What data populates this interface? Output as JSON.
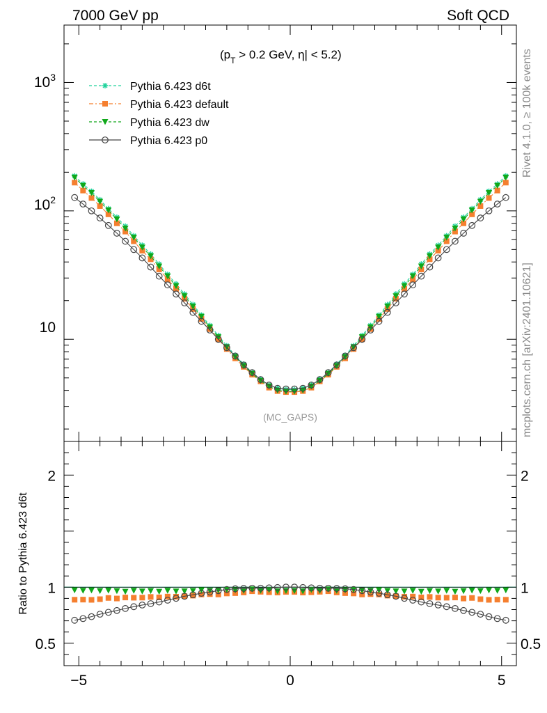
{
  "header": {
    "left": "7000 GeV pp",
    "right": "Soft QCD"
  },
  "side_labels": {
    "rivet": "Rivet 4.1.0, ≥ 100k events",
    "mcplots": "mcplots.cern.ch [arXiv:2401.10621]"
  },
  "chart_data": [
    {
      "type": "line",
      "panel": "main",
      "title": "(p_T > 0.2 GeV, |η| < 5.2)",
      "title_parts": {
        "p": "(p",
        "sub": "T",
        "rest": " > 0.2 GeV, η| < 5.2)"
      },
      "watermark": "(MC_GAPS)",
      "yscale": "log",
      "ylim": [
        1.6,
        2800
      ],
      "xlim": [
        -5.35,
        5.35
      ],
      "y_ticks": [
        {
          "value": 10,
          "label": "10"
        }
      ],
      "y_ticks_pow": [
        {
          "value": 100,
          "base": "10",
          "exp": "2"
        },
        {
          "value": 1000,
          "base": "10",
          "exp": "3"
        }
      ],
      "legend_position": "top-left",
      "x": [
        -5.1,
        -4.9,
        -4.7,
        -4.5,
        -4.3,
        -4.1,
        -3.9,
        -3.7,
        -3.5,
        -3.3,
        -3.1,
        -2.9,
        -2.7,
        -2.5,
        -2.3,
        -2.1,
        -1.9,
        -1.7,
        -1.5,
        -1.3,
        -1.1,
        -0.9,
        -0.7,
        -0.5,
        -0.3,
        -0.1,
        0.1,
        0.3,
        0.5,
        0.7,
        0.9,
        1.1,
        1.3,
        1.5,
        1.7,
        1.9,
        2.1,
        2.3,
        2.5,
        2.7,
        2.9,
        3.1,
        3.3,
        3.5,
        3.7,
        3.9,
        4.1,
        4.3,
        4.5,
        4.7,
        4.9,
        5.1
      ],
      "series": [
        {
          "name": "Pythia 6.423 d6t",
          "color": "#1ed29b",
          "marker": "star",
          "line": "dashed",
          "values": [
            187,
            162,
            142,
            122,
            104,
            89,
            76,
            64,
            54,
            46,
            38.5,
            32,
            27,
            22.5,
            18.6,
            15.4,
            12.8,
            10.7,
            8.9,
            7.5,
            6.4,
            5.5,
            4.9,
            4.4,
            4.15,
            4.05,
            4.05,
            4.15,
            4.4,
            4.9,
            5.5,
            6.4,
            7.5,
            8.9,
            10.7,
            12.8,
            15.4,
            18.6,
            22.5,
            27,
            32,
            38.5,
            46,
            54,
            64,
            76,
            89,
            104,
            122,
            142,
            162,
            187
          ]
        },
        {
          "name": "Pythia 6.423 default",
          "color": "#f57f2f",
          "marker": "square",
          "line": "dashdot",
          "values": [
            166,
            144,
            126,
            109,
            94,
            80,
            69,
            58,
            49,
            42,
            35,
            29.3,
            24.7,
            20.7,
            17.2,
            14.4,
            12,
            10,
            8.4,
            7.1,
            6.1,
            5.3,
            4.7,
            4.2,
            3.95,
            3.88,
            3.88,
            3.95,
            4.2,
            4.7,
            5.3,
            6.1,
            7.1,
            8.4,
            10,
            12,
            14.4,
            17.2,
            20.7,
            24.7,
            29.3,
            35,
            42,
            49,
            58,
            69,
            80,
            94,
            109,
            126,
            144,
            166
          ]
        },
        {
          "name": "Pythia 6.423 dw",
          "color": "#10a81a",
          "marker": "triangle-down",
          "line": "dashed",
          "values": [
            182,
            157,
            138,
            118,
            101,
            86,
            73,
            62,
            52,
            44.5,
            37,
            31,
            26,
            21.7,
            18,
            15,
            12.4,
            10.4,
            8.7,
            7.3,
            6.2,
            5.4,
            4.75,
            4.3,
            4.0,
            3.92,
            3.92,
            4.0,
            4.3,
            4.75,
            5.4,
            6.2,
            7.3,
            8.7,
            10.4,
            12.4,
            15,
            18,
            21.7,
            26,
            31,
            37,
            44.5,
            52,
            62,
            73,
            86,
            101,
            118,
            138,
            157,
            182
          ]
        },
        {
          "name": "Pythia 6.423 p0",
          "color": "#444444",
          "marker": "circle-open",
          "line": "solid",
          "values": [
            127,
            113,
            100,
            88,
            77,
            67,
            58,
            50,
            43,
            36.5,
            31,
            26.5,
            22.5,
            19.2,
            16.2,
            13.8,
            11.8,
            10,
            8.6,
            7.4,
            6.3,
            5.5,
            4.85,
            4.4,
            4.15,
            4.1,
            4.1,
            4.15,
            4.4,
            4.85,
            5.5,
            6.3,
            7.4,
            8.6,
            10,
            11.8,
            13.8,
            16.2,
            19.2,
            22.5,
            26.5,
            31,
            36.5,
            43,
            50,
            58,
            67,
            77,
            88,
            100,
            113,
            127
          ]
        }
      ]
    },
    {
      "type": "line",
      "panel": "ratio",
      "ylabel": "Ratio to Pythia 6.423 d6t",
      "yscale": "linear",
      "ylim": [
        0.3,
        2.3
      ],
      "xlim": [
        -5.35,
        5.35
      ],
      "y_ticks": [
        {
          "value": 0.5,
          "label": "0.5"
        },
        {
          "value": 1,
          "label": "1"
        },
        {
          "value": 2,
          "label": "2"
        }
      ],
      "x_ticks": [
        {
          "value": -5,
          "label": "−5"
        },
        {
          "value": 0,
          "label": "0"
        },
        {
          "value": 5,
          "label": "5"
        }
      ],
      "reference_line": 1,
      "series": [
        {
          "name": "Pythia 6.423 default",
          "color": "#f57f2f",
          "marker": "square",
          "values": [
            0.888,
            0.889,
            0.887,
            0.893,
            0.904,
            0.899,
            0.908,
            0.906,
            0.907,
            0.913,
            0.909,
            0.916,
            0.915,
            0.92,
            0.925,
            0.935,
            0.938,
            0.935,
            0.944,
            0.947,
            0.953,
            0.964,
            0.959,
            0.955,
            0.952,
            0.958,
            0.958,
            0.952,
            0.955,
            0.959,
            0.964,
            0.953,
            0.947,
            0.944,
            0.935,
            0.938,
            0.935,
            0.925,
            0.92,
            0.915,
            0.916,
            0.909,
            0.913,
            0.907,
            0.906,
            0.908,
            0.899,
            0.904,
            0.893,
            0.887,
            0.889,
            0.888
          ]
        },
        {
          "name": "Pythia 6.423 dw",
          "color": "#10a81a",
          "marker": "triangle-down",
          "values": [
            0.973,
            0.969,
            0.972,
            0.967,
            0.971,
            0.966,
            0.961,
            0.969,
            0.963,
            0.967,
            0.961,
            0.969,
            0.963,
            0.964,
            0.968,
            0.974,
            0.969,
            0.972,
            0.978,
            0.973,
            0.969,
            0.982,
            0.969,
            0.977,
            0.964,
            0.968,
            0.968,
            0.964,
            0.977,
            0.969,
            0.982,
            0.969,
            0.973,
            0.978,
            0.972,
            0.969,
            0.974,
            0.968,
            0.964,
            0.963,
            0.969,
            0.961,
            0.967,
            0.963,
            0.969,
            0.961,
            0.966,
            0.971,
            0.967,
            0.972,
            0.969,
            0.973
          ]
        },
        {
          "name": "Pythia 6.423 p0",
          "color": "#444444",
          "marker": "circle-open",
          "values": [
            0.705,
            0.72,
            0.737,
            0.759,
            0.776,
            0.792,
            0.81,
            0.826,
            0.841,
            0.853,
            0.868,
            0.884,
            0.901,
            0.919,
            0.932,
            0.946,
            0.957,
            0.969,
            0.979,
            0.986,
            0.989,
            0.991,
            0.991,
            0.994,
            0.997,
            1.001,
            1.001,
            0.997,
            0.994,
            0.991,
            0.991,
            0.989,
            0.986,
            0.979,
            0.969,
            0.957,
            0.946,
            0.932,
            0.919,
            0.901,
            0.884,
            0.868,
            0.853,
            0.841,
            0.826,
            0.81,
            0.792,
            0.776,
            0.759,
            0.737,
            0.72,
            0.705
          ]
        }
      ]
    }
  ]
}
